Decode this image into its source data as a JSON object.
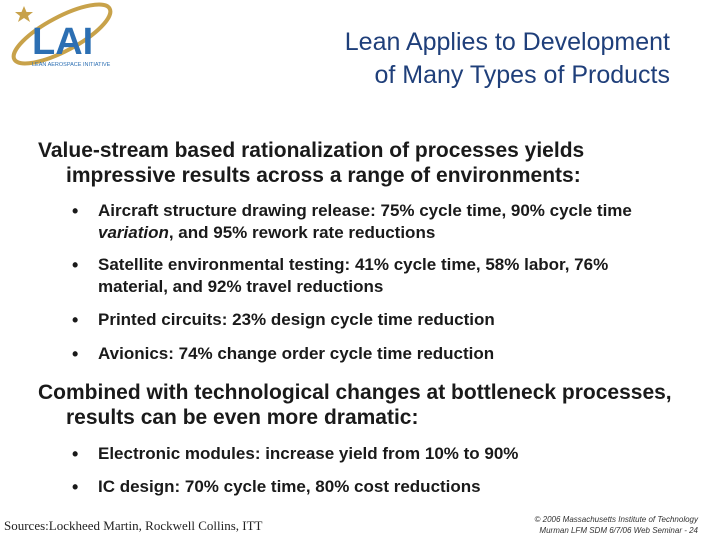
{
  "logo": {
    "text": "LAI",
    "subtitle": "LEAN AEROSPACE INITIATIVE",
    "colors": {
      "ring": "#c8a24a",
      "letters": "#2c6fb3",
      "star": "#c8a24a"
    }
  },
  "title": {
    "line1": "Lean Applies to Development",
    "line2": "of Many Types of Products"
  },
  "section1": {
    "heading": "Value-stream based rationalization of processes yields impressive results across a range of environments:",
    "bullets": [
      {
        "before": "Aircraft structure drawing release: 75% cycle time, 90% cycle time ",
        "em": "variation",
        "after": ",  and 95% rework rate reductions"
      },
      {
        "text": "Satellite environmental testing: 41% cycle time, 58% labor, 76% material, and 92% travel reductions"
      },
      {
        "text": "Printed circuits: 23% design cycle time reduction"
      },
      {
        "text": "Avionics: 74% change order cycle time reduction"
      }
    ]
  },
  "section2": {
    "heading": "Combined with technological changes at bottleneck processes, results can be even more dramatic:",
    "bullets": [
      {
        "text": "Electronic modules: increase yield from 10% to 90%"
      },
      {
        "text": "IC design: 70% cycle time, 80% cost reductions"
      }
    ]
  },
  "bullet_symbol": "•",
  "sources": "Sources:Lockheed Martin, Rockwell Collins, ITT",
  "copyright": {
    "line1": "© 2006 Massachusetts Institute of Technology",
    "line2": "Murman LFM SDM 6/7/06 Web Seminar - 24"
  }
}
